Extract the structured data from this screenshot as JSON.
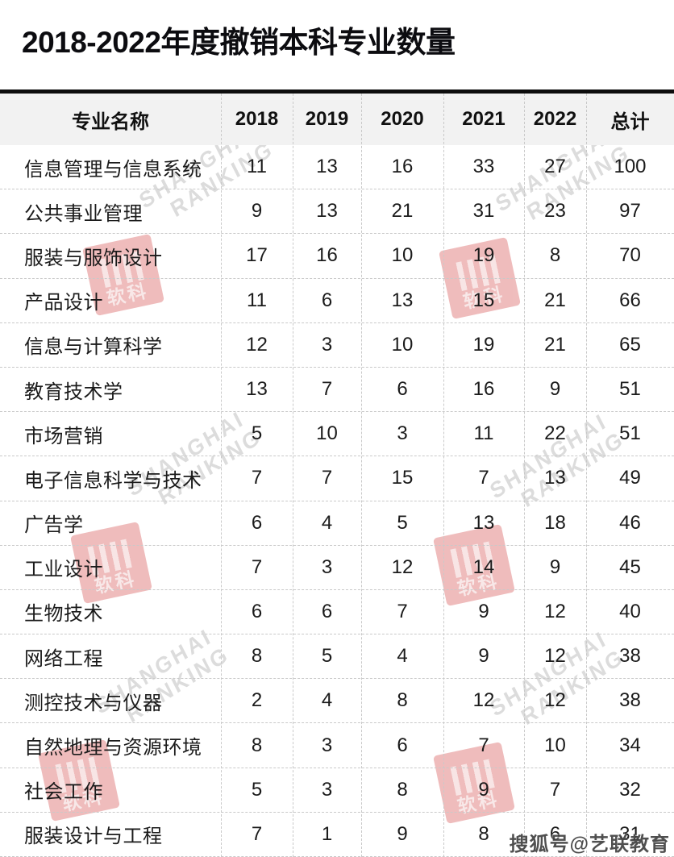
{
  "title": "2018-2022年度撤销本科专业数量",
  "watermark": {
    "brand_line1": "SHANGHAI",
    "brand_line2": "RANKING",
    "logo_text": "软科",
    "credit": "搜狐号@艺联教育"
  },
  "colors": {
    "header_bg": "#f2f2f2",
    "title_rule": "#0d0d0d",
    "grid_dash": "#c9c9c9",
    "body_text": "#1b1b1b",
    "watermark_pink": "#e9a3a3",
    "watermark_gray": "#d6d6d6"
  },
  "chart_data": {
    "type": "table",
    "title": "2018-2022年度撤销本科专业数量",
    "columns": [
      "专业名称",
      "2018",
      "2019",
      "2020",
      "2021",
      "2022",
      "总计"
    ],
    "rows": [
      [
        "信息管理与信息系统",
        11,
        13,
        16,
        33,
        27,
        100
      ],
      [
        "公共事业管理",
        9,
        13,
        21,
        31,
        23,
        97
      ],
      [
        "服装与服饰设计",
        17,
        16,
        10,
        19,
        8,
        70
      ],
      [
        "产品设计",
        11,
        6,
        13,
        15,
        21,
        66
      ],
      [
        "信息与计算科学",
        12,
        3,
        10,
        19,
        21,
        65
      ],
      [
        "教育技术学",
        13,
        7,
        6,
        16,
        9,
        51
      ],
      [
        "市场营销",
        5,
        10,
        3,
        11,
        22,
        51
      ],
      [
        "电子信息科学与技术",
        7,
        7,
        15,
        7,
        13,
        49
      ],
      [
        "广告学",
        6,
        4,
        5,
        13,
        18,
        46
      ],
      [
        "工业设计",
        7,
        3,
        12,
        14,
        9,
        45
      ],
      [
        "生物技术",
        6,
        6,
        7,
        9,
        12,
        40
      ],
      [
        "网络工程",
        8,
        5,
        4,
        9,
        12,
        38
      ],
      [
        "测控技术与仪器",
        2,
        4,
        8,
        12,
        12,
        38
      ],
      [
        "自然地理与资源环境",
        8,
        3,
        6,
        7,
        10,
        34
      ],
      [
        "社会工作",
        5,
        3,
        8,
        9,
        7,
        32
      ],
      [
        "服装设计与工程",
        7,
        1,
        9,
        8,
        6,
        31
      ]
    ]
  }
}
